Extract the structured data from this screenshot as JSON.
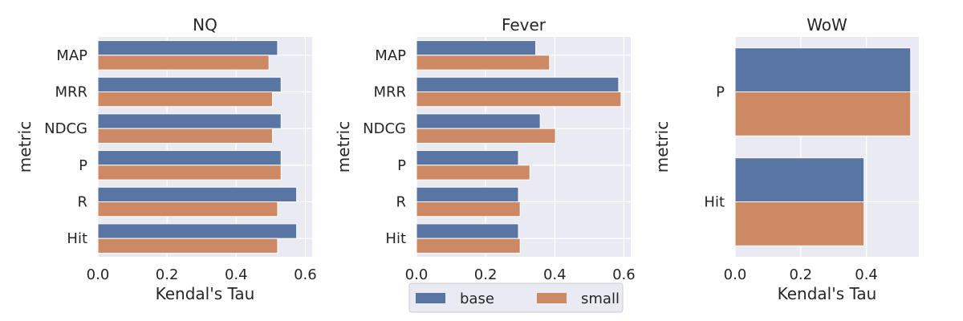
{
  "chart_data": [
    {
      "type": "bar",
      "orientation": "horizontal",
      "title": "NQ",
      "xlabel": "Kendal's Tau",
      "ylabel": "metric",
      "categories": [
        "MAP",
        "MRR",
        "NDCG",
        "P",
        "R",
        "Hit"
      ],
      "series": [
        {
          "name": "base",
          "values": [
            0.52,
            0.53,
            0.53,
            0.53,
            0.575,
            0.575
          ]
        },
        {
          "name": "small",
          "values": [
            0.495,
            0.505,
            0.505,
            0.53,
            0.52,
            0.52
          ]
        }
      ],
      "xlim": [
        0,
        0.62
      ],
      "xticks": [
        0.0,
        0.2,
        0.4,
        0.6
      ],
      "xtick_labels": [
        "0.0",
        "0.2",
        "0.4",
        "0.6"
      ],
      "grid": true
    },
    {
      "type": "bar",
      "orientation": "horizontal",
      "title": "Fever",
      "xlabel": "",
      "ylabel": "metric",
      "categories": [
        "MAP",
        "MRR",
        "NDCG",
        "P",
        "R",
        "Hit"
      ],
      "series": [
        {
          "name": "base",
          "values": [
            0.345,
            0.585,
            0.358,
            0.295,
            0.295,
            0.295
          ]
        },
        {
          "name": "small",
          "values": [
            0.385,
            0.592,
            0.402,
            0.328,
            0.3,
            0.3
          ]
        }
      ],
      "xlim": [
        0,
        0.62
      ],
      "xticks": [
        0.0,
        0.2,
        0.4,
        0.6
      ],
      "xtick_labels": [
        "0.0",
        "0.2",
        "0.4",
        "0.6"
      ],
      "grid": true
    },
    {
      "type": "bar",
      "orientation": "horizontal",
      "title": "WoW",
      "xlabel": "Kendal's Tau",
      "ylabel": "metric",
      "categories": [
        "P",
        "Hit"
      ],
      "series": [
        {
          "name": "base",
          "values": [
            0.535,
            0.393
          ]
        },
        {
          "name": "small",
          "values": [
            0.535,
            0.393
          ]
        }
      ],
      "xlim": [
        0,
        0.56
      ],
      "xticks": [
        0.0,
        0.2,
        0.4
      ],
      "xtick_labels": [
        "0.0",
        "0.2",
        "0.4"
      ],
      "grid": true
    }
  ],
  "legend": {
    "placement": "bottom-center",
    "entries": [
      {
        "label": "base",
        "color": "#5975a4"
      },
      {
        "label": "small",
        "color": "#cc8963"
      }
    ]
  },
  "colors": {
    "base": "#5975a4",
    "small": "#cc8963",
    "plot_background": "#eaeaf2",
    "grid": "#ffffff"
  }
}
